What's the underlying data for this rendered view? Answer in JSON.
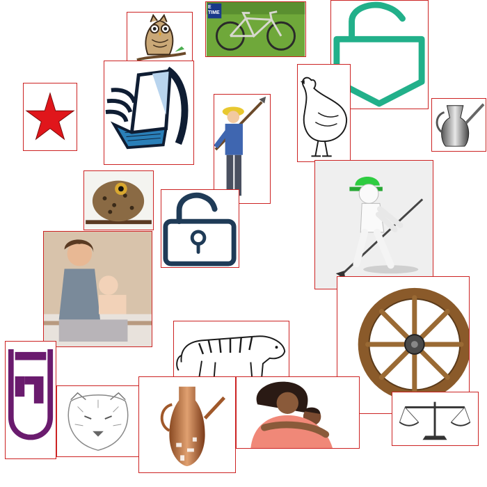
{
  "collage": {
    "tiles": [
      {
        "key": "owl-cartoon",
        "icon": "owl-on-branch-icon"
      },
      {
        "key": "bicycle-photo",
        "icon": "bicycle-icon",
        "logo_text": "E TIME"
      },
      {
        "key": "open-padlock-green",
        "icon": "unlocked-padlock-icon",
        "accent": "#22b08a"
      },
      {
        "key": "red-star",
        "icon": "red-star-icon",
        "accent": "#e0161b"
      },
      {
        "key": "laptop-clipart",
        "icon": "laptop-icon",
        "accent": "#2a7fb8"
      },
      {
        "key": "farmer-with-hoe",
        "icon": "farmer-hoe-icon"
      },
      {
        "key": "hen-sketch",
        "icon": "hen-icon"
      },
      {
        "key": "metal-jug",
        "icon": "metal-jug-icon"
      },
      {
        "key": "owl-photo",
        "icon": "owl-icon"
      },
      {
        "key": "padlock-outline",
        "icon": "unlocked-padlock-icon",
        "accent": "#1f3b57"
      },
      {
        "key": "figure-with-hoe",
        "icon": "stick-figure-hoe-icon",
        "accent": "#2ecc40"
      },
      {
        "key": "mother-and-baby",
        "icon": "mother-baby-icon"
      },
      {
        "key": "wagon-wheel",
        "icon": "wooden-wheel-icon"
      },
      {
        "key": "tiger-outline",
        "icon": "tiger-icon"
      },
      {
        "key": "purple-logo",
        "icon": "purple-logo-icon",
        "accent": "#6a1b6e"
      },
      {
        "key": "tiger-face-sketch",
        "icon": "tiger-face-icon"
      },
      {
        "key": "copper-jug",
        "icon": "copper-jug-icon"
      },
      {
        "key": "woman-hugging-child",
        "icon": "hugging-people-icon"
      },
      {
        "key": "balance-scale",
        "icon": "balance-scale-icon"
      }
    ]
  }
}
